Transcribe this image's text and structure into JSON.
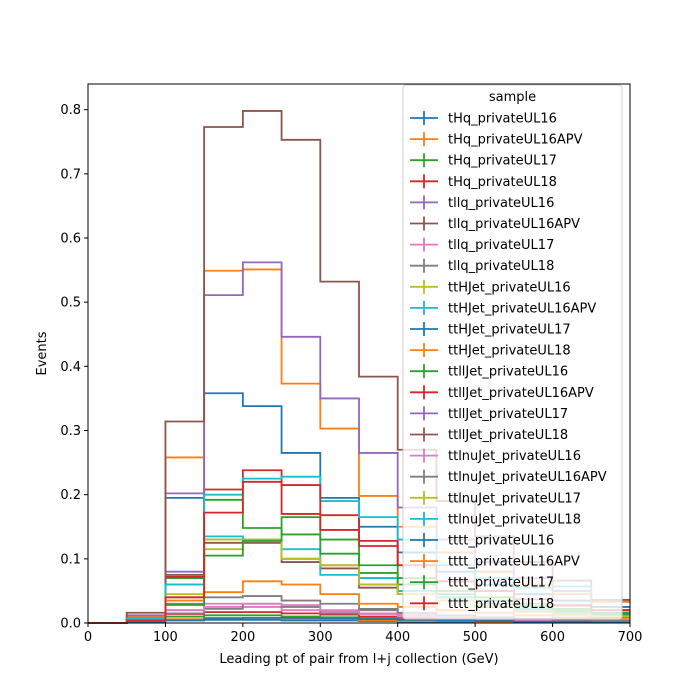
{
  "chart_data": {
    "type": "step-histogram",
    "xlabel": "Leading pt of pair from l+j collection (GeV)",
    "ylabel": "Events",
    "xlim": [
      0,
      700
    ],
    "ylim": [
      0,
      0.84
    ],
    "xticks": [
      0,
      100,
      200,
      300,
      400,
      500,
      600,
      700
    ],
    "yticks": [
      0.0,
      0.1,
      0.2,
      0.3,
      0.4,
      0.5,
      0.6,
      0.7,
      0.8
    ],
    "xtick_labels": [
      "0",
      "100",
      "200",
      "300",
      "400",
      "500",
      "600",
      "700"
    ],
    "ytick_labels": [
      "0.0",
      "0.1",
      "0.2",
      "0.3",
      "0.4",
      "0.5",
      "0.6",
      "0.7",
      "0.8"
    ],
    "grid": false,
    "legend": {
      "title": "sample",
      "placement": "top-right"
    },
    "bin_edges": [
      0,
      50,
      100,
      150,
      200,
      250,
      300,
      350,
      400,
      450,
      500,
      550,
      600,
      650,
      700
    ],
    "series": [
      {
        "name": "tHq_privateUL16",
        "color": "#1f77b4",
        "values": [
          0,
          0.002,
          0.005,
          0.005,
          0.005,
          0.004,
          0.004,
          0.003,
          0.002,
          0.002,
          0.001,
          0.001,
          0.001,
          0.001
        ]
      },
      {
        "name": "tHq_privateUL16APV",
        "color": "#ff7f0e",
        "values": [
          0,
          0.002,
          0.006,
          0.008,
          0.008,
          0.007,
          0.006,
          0.004,
          0.003,
          0.003,
          0.002,
          0.002,
          0.001,
          0.001
        ]
      },
      {
        "name": "tHq_privateUL17",
        "color": "#2ca02c",
        "values": [
          0,
          0.003,
          0.01,
          0.012,
          0.012,
          0.01,
          0.009,
          0.007,
          0.005,
          0.004,
          0.003,
          0.002,
          0.002,
          0.001
        ]
      },
      {
        "name": "tHq_privateUL18",
        "color": "#d62728",
        "values": [
          0,
          0.004,
          0.014,
          0.017,
          0.017,
          0.015,
          0.013,
          0.01,
          0.008,
          0.006,
          0.004,
          0.003,
          0.002,
          0.002
        ]
      },
      {
        "name": "tllq_privateUL16",
        "color": "#9467bd",
        "values": [
          0,
          0.01,
          0.08,
          0.13,
          0.13,
          0.1,
          0.09,
          0.06,
          0.05,
          0.04,
          0.03,
          0.02,
          0.015,
          0.01
        ]
      },
      {
        "name": "tllq_privateUL16APV",
        "color": "#8c564b",
        "values": [
          0,
          0.008,
          0.075,
          0.125,
          0.125,
          0.095,
          0.085,
          0.055,
          0.045,
          0.035,
          0.025,
          0.018,
          0.013,
          0.009
        ]
      },
      {
        "name": "tllq_privateUL17",
        "color": "#e377c2",
        "values": [
          0,
          0.005,
          0.02,
          0.025,
          0.025,
          0.02,
          0.018,
          0.014,
          0.01,
          0.008,
          0.006,
          0.004,
          0.003,
          0.002
        ]
      },
      {
        "name": "tllq_privateUL18",
        "color": "#7f7f7f",
        "values": [
          0,
          0.004,
          0.015,
          0.022,
          0.03,
          0.025,
          0.015,
          0.02,
          0.015,
          0.01,
          0.008,
          0.006,
          0.005,
          0.004
        ]
      },
      {
        "name": "ttHJet_privateUL16",
        "color": "#bcbd22",
        "values": [
          0,
          0.004,
          0.04,
          0.115,
          0.13,
          0.1,
          0.09,
          0.07,
          0.05,
          0.04,
          0.03,
          0.022,
          0.016,
          0.012
        ]
      },
      {
        "name": "ttHJet_privateUL16APV",
        "color": "#17becf",
        "values": [
          0,
          0.004,
          0.06,
          0.135,
          0.13,
          0.115,
          0.075,
          0.07,
          0.05,
          0.04,
          0.03,
          0.022,
          0.016,
          0.012
        ]
      },
      {
        "name": "ttHJet_privateUL17",
        "color": "#1f77b4",
        "values": [
          0,
          0.008,
          0.195,
          0.358,
          0.338,
          0.265,
          0.195,
          0.15,
          0.11,
          0.08,
          0.06,
          0.045,
          0.035,
          0.025
        ]
      },
      {
        "name": "ttHJet_privateUL18",
        "color": "#ff7f0e",
        "values": [
          0,
          0.01,
          0.258,
          0.549,
          0.551,
          0.373,
          0.303,
          0.198,
          0.15,
          0.11,
          0.08,
          0.06,
          0.045,
          0.033
        ]
      },
      {
        "name": "ttllJet_privateUL16",
        "color": "#2ca02c",
        "values": [
          0,
          0.004,
          0.07,
          0.192,
          0.148,
          0.138,
          0.108,
          0.078,
          0.06,
          0.045,
          0.035,
          0.026,
          0.019,
          0.014
        ]
      },
      {
        "name": "ttllJet_privateUL16APV",
        "color": "#d62728",
        "values": [
          0,
          0.004,
          0.072,
          0.208,
          0.238,
          0.17,
          0.168,
          0.128,
          0.09,
          0.065,
          0.05,
          0.037,
          0.027,
          0.02
        ]
      },
      {
        "name": "ttllJet_privateUL17",
        "color": "#9467bd",
        "values": [
          0,
          0.012,
          0.202,
          0.511,
          0.562,
          0.446,
          0.35,
          0.265,
          0.18,
          0.13,
          0.095,
          0.07,
          0.05,
          0.036
        ]
      },
      {
        "name": "ttllJet_privateUL18",
        "color": "#8c564b",
        "values": [
          0,
          0.016,
          0.314,
          0.773,
          0.798,
          0.753,
          0.532,
          0.384,
          0.27,
          0.19,
          0.135,
          0.095,
          0.066,
          0.036
        ]
      },
      {
        "name": "ttlnuJet_privateUL16",
        "color": "#e377c2",
        "values": [
          0,
          0.003,
          0.02,
          0.03,
          0.03,
          0.028,
          0.02,
          0.015,
          0.012,
          0.009,
          0.007,
          0.005,
          0.004,
          0.003
        ]
      },
      {
        "name": "ttlnuJet_privateUL16APV",
        "color": "#7f7f7f",
        "values": [
          0,
          0.004,
          0.03,
          0.04,
          0.042,
          0.035,
          0.03,
          0.022,
          0.016,
          0.012,
          0.009,
          0.007,
          0.005,
          0.004
        ]
      },
      {
        "name": "ttlnuJet_privateUL17",
        "color": "#bcbd22",
        "values": [
          0,
          0.005,
          0.045,
          0.13,
          0.13,
          0.1,
          0.09,
          0.06,
          0.045,
          0.035,
          0.026,
          0.019,
          0.014,
          0.01
        ]
      },
      {
        "name": "ttlnuJet_privateUL18",
        "color": "#17becf",
        "values": [
          0,
          0.007,
          0.06,
          0.2,
          0.225,
          0.228,
          0.19,
          0.165,
          0.13,
          0.09,
          0.07,
          0.055,
          0.057,
          0.02
        ]
      },
      {
        "name": "tttt_privateUL16",
        "color": "#1f77b4",
        "values": [
          0,
          0.001,
          0.004,
          0.007,
          0.008,
          0.008,
          0.007,
          0.006,
          0.005,
          0.004,
          0.003,
          0.002,
          0.002,
          0.001
        ]
      },
      {
        "name": "tttt_privateUL16APV",
        "color": "#ff7f0e",
        "values": [
          0,
          0.003,
          0.035,
          0.048,
          0.065,
          0.06,
          0.045,
          0.03,
          0.025,
          0.02,
          0.016,
          0.012,
          0.009,
          0.006
        ]
      },
      {
        "name": "tttt_privateUL17",
        "color": "#2ca02c",
        "values": [
          0,
          0.003,
          0.028,
          0.105,
          0.128,
          0.165,
          0.13,
          0.09,
          0.07,
          0.05,
          0.04,
          0.03,
          0.022,
          0.016
        ]
      },
      {
        "name": "tttt_privateUL18",
        "color": "#d62728",
        "values": [
          0,
          0.004,
          0.04,
          0.172,
          0.22,
          0.215,
          0.145,
          0.12,
          0.09,
          0.065,
          0.05,
          0.037,
          0.028,
          0.02
        ]
      }
    ]
  }
}
